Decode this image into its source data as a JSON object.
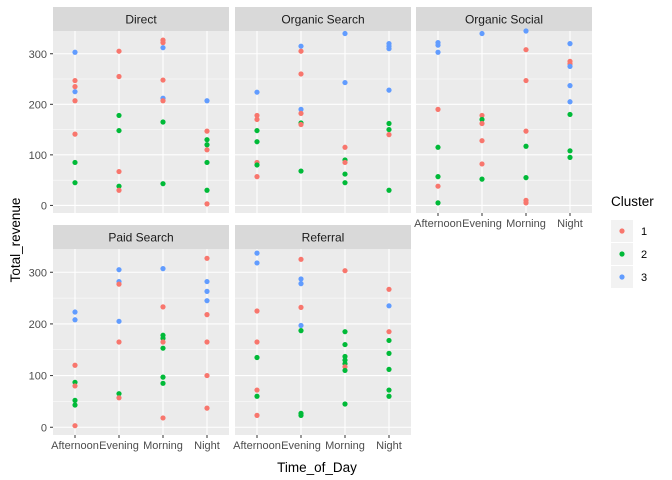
{
  "chart_data": {
    "type": "scatter",
    "facet_by": "Channel",
    "xlabel": "Time_of_Day",
    "ylabel": "Total_revenue",
    "categories": [
      "Afternoon",
      "Evening",
      "Morning",
      "Night"
    ],
    "tick_labels": [
      "Afternoon",
      "Evening",
      "Morning",
      "Night"
    ],
    "ylim": [
      -15,
      345
    ],
    "yticks": [
      0,
      100,
      200,
      300
    ],
    "grid": true,
    "legend": {
      "title": "Cluster",
      "position": "right",
      "entries": [
        {
          "label": "1",
          "color": "#F8766D"
        },
        {
          "label": "2",
          "color": "#00BA38"
        },
        {
          "label": "3",
          "color": "#619CFF"
        }
      ]
    },
    "panels": [
      {
        "name": "Direct",
        "points": [
          {
            "x": "Afternoon",
            "y": 303,
            "cluster": "3"
          },
          {
            "x": "Afternoon",
            "y": 247,
            "cluster": "1"
          },
          {
            "x": "Afternoon",
            "y": 235,
            "cluster": "1"
          },
          {
            "x": "Afternoon",
            "y": 225,
            "cluster": "3"
          },
          {
            "x": "Afternoon",
            "y": 207,
            "cluster": "1"
          },
          {
            "x": "Afternoon",
            "y": 141,
            "cluster": "1"
          },
          {
            "x": "Afternoon",
            "y": 85,
            "cluster": "2"
          },
          {
            "x": "Afternoon",
            "y": 45,
            "cluster": "2"
          },
          {
            "x": "Evening",
            "y": 305,
            "cluster": "1"
          },
          {
            "x": "Evening",
            "y": 255,
            "cluster": "1"
          },
          {
            "x": "Evening",
            "y": 178,
            "cluster": "2"
          },
          {
            "x": "Evening",
            "y": 148,
            "cluster": "2"
          },
          {
            "x": "Evening",
            "y": 67,
            "cluster": "1"
          },
          {
            "x": "Evening",
            "y": 38,
            "cluster": "2"
          },
          {
            "x": "Evening",
            "y": 30,
            "cluster": "1"
          },
          {
            "x": "Morning",
            "y": 327,
            "cluster": "1"
          },
          {
            "x": "Morning",
            "y": 322,
            "cluster": "1"
          },
          {
            "x": "Morning",
            "y": 312,
            "cluster": "3"
          },
          {
            "x": "Morning",
            "y": 248,
            "cluster": "1"
          },
          {
            "x": "Morning",
            "y": 212,
            "cluster": "3"
          },
          {
            "x": "Morning",
            "y": 207,
            "cluster": "1"
          },
          {
            "x": "Morning",
            "y": 165,
            "cluster": "2"
          },
          {
            "x": "Morning",
            "y": 43,
            "cluster": "2"
          },
          {
            "x": "Night",
            "y": 207,
            "cluster": "3"
          },
          {
            "x": "Night",
            "y": 147,
            "cluster": "1"
          },
          {
            "x": "Night",
            "y": 130,
            "cluster": "2"
          },
          {
            "x": "Night",
            "y": 120,
            "cluster": "2"
          },
          {
            "x": "Night",
            "y": 110,
            "cluster": "1"
          },
          {
            "x": "Night",
            "y": 85,
            "cluster": "2"
          },
          {
            "x": "Night",
            "y": 30,
            "cluster": "2"
          },
          {
            "x": "Night",
            "y": 3,
            "cluster": "1"
          }
        ]
      },
      {
        "name": "Organic Search",
        "points": [
          {
            "x": "Afternoon",
            "y": 224,
            "cluster": "3"
          },
          {
            "x": "Afternoon",
            "y": 178,
            "cluster": "1"
          },
          {
            "x": "Afternoon",
            "y": 170,
            "cluster": "1"
          },
          {
            "x": "Afternoon",
            "y": 148,
            "cluster": "2"
          },
          {
            "x": "Afternoon",
            "y": 126,
            "cluster": "2"
          },
          {
            "x": "Afternoon",
            "y": 85,
            "cluster": "1"
          },
          {
            "x": "Afternoon",
            "y": 80,
            "cluster": "2"
          },
          {
            "x": "Afternoon",
            "y": 57,
            "cluster": "1"
          },
          {
            "x": "Evening",
            "y": 315,
            "cluster": "3"
          },
          {
            "x": "Evening",
            "y": 305,
            "cluster": "1"
          },
          {
            "x": "Evening",
            "y": 260,
            "cluster": "1"
          },
          {
            "x": "Evening",
            "y": 190,
            "cluster": "3"
          },
          {
            "x": "Evening",
            "y": 182,
            "cluster": "1"
          },
          {
            "x": "Evening",
            "y": 163,
            "cluster": "2"
          },
          {
            "x": "Evening",
            "y": 160,
            "cluster": "1"
          },
          {
            "x": "Evening",
            "y": 68,
            "cluster": "2"
          },
          {
            "x": "Morning",
            "y": 340,
            "cluster": "3"
          },
          {
            "x": "Morning",
            "y": 243,
            "cluster": "3"
          },
          {
            "x": "Morning",
            "y": 115,
            "cluster": "1"
          },
          {
            "x": "Morning",
            "y": 90,
            "cluster": "2"
          },
          {
            "x": "Morning",
            "y": 85,
            "cluster": "1"
          },
          {
            "x": "Morning",
            "y": 62,
            "cluster": "2"
          },
          {
            "x": "Morning",
            "y": 45,
            "cluster": "2"
          },
          {
            "x": "Night",
            "y": 320,
            "cluster": "3"
          },
          {
            "x": "Night",
            "y": 315,
            "cluster": "3"
          },
          {
            "x": "Night",
            "y": 310,
            "cluster": "3"
          },
          {
            "x": "Night",
            "y": 228,
            "cluster": "3"
          },
          {
            "x": "Night",
            "y": 162,
            "cluster": "2"
          },
          {
            "x": "Night",
            "y": 150,
            "cluster": "2"
          },
          {
            "x": "Night",
            "y": 140,
            "cluster": "1"
          },
          {
            "x": "Night",
            "y": 30,
            "cluster": "2"
          }
        ]
      },
      {
        "name": "Organic Social",
        "points": [
          {
            "x": "Afternoon",
            "y": 322,
            "cluster": "3"
          },
          {
            "x": "Afternoon",
            "y": 317,
            "cluster": "3"
          },
          {
            "x": "Afternoon",
            "y": 303,
            "cluster": "3"
          },
          {
            "x": "Afternoon",
            "y": 190,
            "cluster": "1"
          },
          {
            "x": "Afternoon",
            "y": 115,
            "cluster": "2"
          },
          {
            "x": "Afternoon",
            "y": 57,
            "cluster": "2"
          },
          {
            "x": "Afternoon",
            "y": 38,
            "cluster": "1"
          },
          {
            "x": "Afternoon",
            "y": 5,
            "cluster": "2"
          },
          {
            "x": "Evening",
            "y": 340,
            "cluster": "3"
          },
          {
            "x": "Evening",
            "y": 178,
            "cluster": "1"
          },
          {
            "x": "Evening",
            "y": 170,
            "cluster": "2"
          },
          {
            "x": "Evening",
            "y": 162,
            "cluster": "1"
          },
          {
            "x": "Evening",
            "y": 128,
            "cluster": "1"
          },
          {
            "x": "Evening",
            "y": 82,
            "cluster": "1"
          },
          {
            "x": "Evening",
            "y": 52,
            "cluster": "2"
          },
          {
            "x": "Morning",
            "y": 345,
            "cluster": "3"
          },
          {
            "x": "Morning",
            "y": 308,
            "cluster": "1"
          },
          {
            "x": "Morning",
            "y": 247,
            "cluster": "1"
          },
          {
            "x": "Morning",
            "y": 147,
            "cluster": "1"
          },
          {
            "x": "Morning",
            "y": 117,
            "cluster": "2"
          },
          {
            "x": "Morning",
            "y": 55,
            "cluster": "2"
          },
          {
            "x": "Morning",
            "y": 10,
            "cluster": "1"
          },
          {
            "x": "Morning",
            "y": 5,
            "cluster": "1"
          },
          {
            "x": "Night",
            "y": 320,
            "cluster": "3"
          },
          {
            "x": "Night",
            "y": 285,
            "cluster": "1"
          },
          {
            "x": "Night",
            "y": 280,
            "cluster": "1"
          },
          {
            "x": "Night",
            "y": 275,
            "cluster": "3"
          },
          {
            "x": "Night",
            "y": 237,
            "cluster": "3"
          },
          {
            "x": "Night",
            "y": 205,
            "cluster": "3"
          },
          {
            "x": "Night",
            "y": 180,
            "cluster": "2"
          },
          {
            "x": "Night",
            "y": 108,
            "cluster": "2"
          },
          {
            "x": "Night",
            "y": 95,
            "cluster": "2"
          }
        ]
      },
      {
        "name": "Paid Search",
        "points": [
          {
            "x": "Afternoon",
            "y": 223,
            "cluster": "3"
          },
          {
            "x": "Afternoon",
            "y": 208,
            "cluster": "3"
          },
          {
            "x": "Afternoon",
            "y": 120,
            "cluster": "1"
          },
          {
            "x": "Afternoon",
            "y": 87,
            "cluster": "2"
          },
          {
            "x": "Afternoon",
            "y": 80,
            "cluster": "1"
          },
          {
            "x": "Afternoon",
            "y": 52,
            "cluster": "2"
          },
          {
            "x": "Afternoon",
            "y": 43,
            "cluster": "2"
          },
          {
            "x": "Afternoon",
            "y": 3,
            "cluster": "1"
          },
          {
            "x": "Evening",
            "y": 305,
            "cluster": "3"
          },
          {
            "x": "Evening",
            "y": 282,
            "cluster": "3"
          },
          {
            "x": "Evening",
            "y": 277,
            "cluster": "1"
          },
          {
            "x": "Evening",
            "y": 205,
            "cluster": "3"
          },
          {
            "x": "Evening",
            "y": 165,
            "cluster": "1"
          },
          {
            "x": "Evening",
            "y": 65,
            "cluster": "2"
          },
          {
            "x": "Evening",
            "y": 57,
            "cluster": "1"
          },
          {
            "x": "Morning",
            "y": 307,
            "cluster": "3"
          },
          {
            "x": "Morning",
            "y": 233,
            "cluster": "1"
          },
          {
            "x": "Morning",
            "y": 178,
            "cluster": "2"
          },
          {
            "x": "Morning",
            "y": 172,
            "cluster": "2"
          },
          {
            "x": "Morning",
            "y": 165,
            "cluster": "1"
          },
          {
            "x": "Morning",
            "y": 153,
            "cluster": "2"
          },
          {
            "x": "Morning",
            "y": 97,
            "cluster": "2"
          },
          {
            "x": "Morning",
            "y": 85,
            "cluster": "2"
          },
          {
            "x": "Morning",
            "y": 18,
            "cluster": "1"
          },
          {
            "x": "Night",
            "y": 327,
            "cluster": "1"
          },
          {
            "x": "Night",
            "y": 282,
            "cluster": "3"
          },
          {
            "x": "Night",
            "y": 263,
            "cluster": "3"
          },
          {
            "x": "Night",
            "y": 245,
            "cluster": "3"
          },
          {
            "x": "Night",
            "y": 218,
            "cluster": "1"
          },
          {
            "x": "Night",
            "y": 165,
            "cluster": "1"
          },
          {
            "x": "Night",
            "y": 100,
            "cluster": "1"
          },
          {
            "x": "Night",
            "y": 37,
            "cluster": "1"
          }
        ]
      },
      {
        "name": "Referral",
        "points": [
          {
            "x": "Afternoon",
            "y": 337,
            "cluster": "3"
          },
          {
            "x": "Afternoon",
            "y": 318,
            "cluster": "3"
          },
          {
            "x": "Afternoon",
            "y": 225,
            "cluster": "1"
          },
          {
            "x": "Afternoon",
            "y": 165,
            "cluster": "1"
          },
          {
            "x": "Afternoon",
            "y": 135,
            "cluster": "2"
          },
          {
            "x": "Afternoon",
            "y": 72,
            "cluster": "1"
          },
          {
            "x": "Afternoon",
            "y": 60,
            "cluster": "2"
          },
          {
            "x": "Afternoon",
            "y": 23,
            "cluster": "1"
          },
          {
            "x": "Evening",
            "y": 325,
            "cluster": "1"
          },
          {
            "x": "Evening",
            "y": 287,
            "cluster": "3"
          },
          {
            "x": "Evening",
            "y": 278,
            "cluster": "3"
          },
          {
            "x": "Evening",
            "y": 232,
            "cluster": "1"
          },
          {
            "x": "Evening",
            "y": 197,
            "cluster": "3"
          },
          {
            "x": "Evening",
            "y": 187,
            "cluster": "2"
          },
          {
            "x": "Evening",
            "y": 27,
            "cluster": "2"
          },
          {
            "x": "Evening",
            "y": 23,
            "cluster": "2"
          },
          {
            "x": "Morning",
            "y": 303,
            "cluster": "1"
          },
          {
            "x": "Morning",
            "y": 185,
            "cluster": "2"
          },
          {
            "x": "Morning",
            "y": 160,
            "cluster": "2"
          },
          {
            "x": "Morning",
            "y": 137,
            "cluster": "2"
          },
          {
            "x": "Morning",
            "y": 130,
            "cluster": "2"
          },
          {
            "x": "Morning",
            "y": 123,
            "cluster": "2"
          },
          {
            "x": "Morning",
            "y": 117,
            "cluster": "1"
          },
          {
            "x": "Morning",
            "y": 110,
            "cluster": "2"
          },
          {
            "x": "Morning",
            "y": 45,
            "cluster": "2"
          },
          {
            "x": "Night",
            "y": 267,
            "cluster": "1"
          },
          {
            "x": "Night",
            "y": 235,
            "cluster": "3"
          },
          {
            "x": "Night",
            "y": 185,
            "cluster": "1"
          },
          {
            "x": "Night",
            "y": 168,
            "cluster": "2"
          },
          {
            "x": "Night",
            "y": 143,
            "cluster": "2"
          },
          {
            "x": "Night",
            "y": 112,
            "cluster": "2"
          },
          {
            "x": "Night",
            "y": 72,
            "cluster": "2"
          },
          {
            "x": "Night",
            "y": 60,
            "cluster": "2"
          }
        ]
      }
    ]
  }
}
